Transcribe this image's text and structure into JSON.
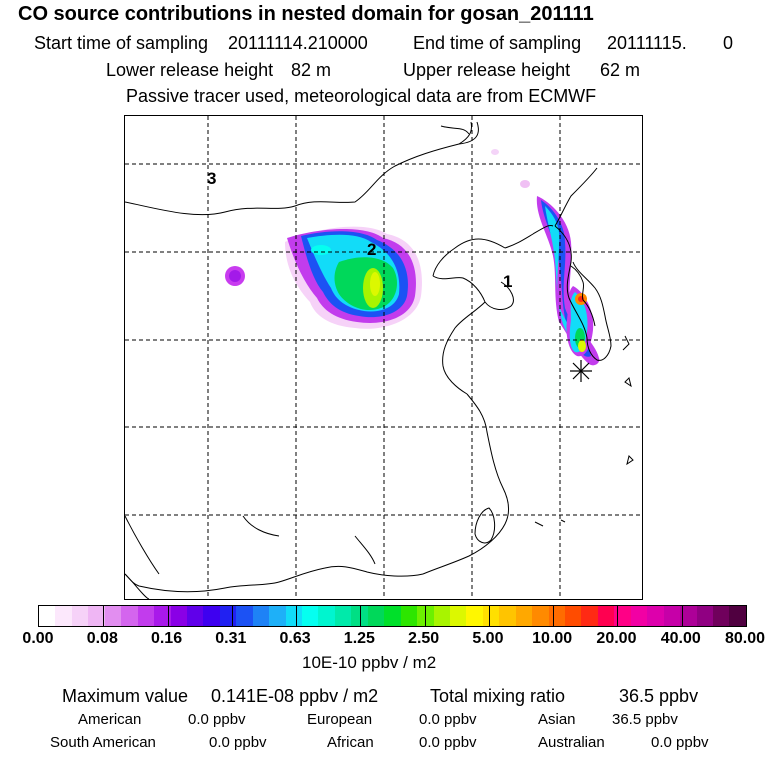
{
  "header": {
    "title": "CO  source contributions in nested domain for gosan_201111",
    "start_label": "Start time of sampling",
    "start_value": "20111114.210000",
    "end_label": "End time of sampling",
    "end_value": "20111115.",
    "end_extra": "0",
    "lower_label": "Lower release height",
    "lower_value": "82 m",
    "upper_label": "Upper release height",
    "upper_value": "62 m",
    "info": "Passive tracer used, meteorological data are from ECMWF"
  },
  "map": {
    "region_labels": [
      "1",
      "2",
      "3"
    ],
    "receptor_marker": "asterisk-icon"
  },
  "colorbar": {
    "colors": [
      "#ffffff",
      "#fce8fc",
      "#f6d2f8",
      "#efb6f4",
      "#e28ef0",
      "#d465ee",
      "#c23ced",
      "#a919ea",
      "#8a00e6",
      "#6000ea",
      "#3e00f0",
      "#2121f2",
      "#1c52f4",
      "#1e82f6",
      "#1eb0f8",
      "#12dcf8",
      "#05fff0",
      "#00f5cf",
      "#00eaaa",
      "#00df84",
      "#00d85a",
      "#00e02a",
      "#2de600",
      "#6cf000",
      "#a8f400",
      "#dcf800",
      "#fff700",
      "#ffe000",
      "#ffc400",
      "#ffa800",
      "#ff8a00",
      "#ff6c00",
      "#ff4c00",
      "#ff2a14",
      "#ff0050",
      "#ff0086",
      "#f200a4",
      "#dd00ac",
      "#c600a8",
      "#ad0098",
      "#900082",
      "#70005c",
      "#500040"
    ],
    "tick_labels": [
      "0.00",
      "0.08",
      "0.16",
      "0.31",
      "0.63",
      "1.25",
      "2.50",
      "5.00",
      "10.00",
      "20.00",
      "40.00",
      "80.00"
    ],
    "unit": "10E-10 ppbv / m2"
  },
  "stats": {
    "max_label": "Maximum value",
    "max_value": "0.141E-08 ppbv / m2",
    "total_label": "Total mixing ratio",
    "total_value": "36.5 ppbv",
    "american_label": "American",
    "american_value": "0.0 ppbv",
    "european_label": "European",
    "european_value": "0.0 ppbv",
    "asian_label": "Asian",
    "asian_value": "36.5 ppbv",
    "south_american_label": "South American",
    "south_american_value": "0.0 ppbv",
    "african_label": "African",
    "african_value": "0.0 ppbv",
    "australian_label": "Australian",
    "australian_value": "0.0 ppbv"
  }
}
